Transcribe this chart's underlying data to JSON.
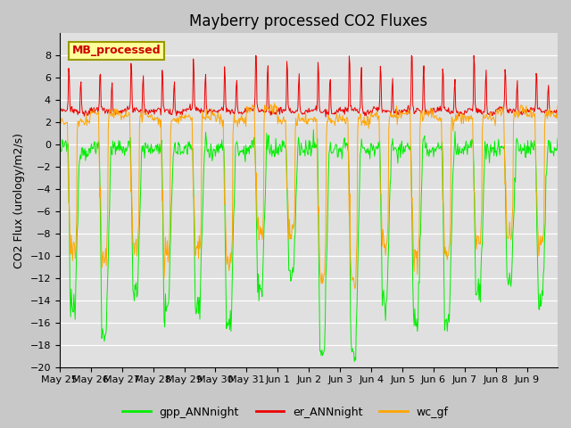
{
  "title": "Mayberry processed CO2 Fluxes",
  "ylabel": "CO2 Flux (urology/m2/s)",
  "ylim": [
    -20,
    10
  ],
  "yticks": [
    -20,
    -18,
    -16,
    -14,
    -12,
    -10,
    -8,
    -6,
    -4,
    -2,
    0,
    2,
    4,
    6,
    8
  ],
  "legend_label": "MB_processed",
  "legend_label_color": "#cc0000",
  "legend_box_color": "#ffff99",
  "fig_bg_color": "#c8c8c8",
  "plot_bg_color": "#e0e0e0",
  "series": {
    "gpp": {
      "color": "#00ee00",
      "label": "gpp_ANNnight"
    },
    "er": {
      "color": "#ee0000",
      "label": "er_ANNnight"
    },
    "wc": {
      "color": "#ffa500",
      "label": "wc_gf"
    }
  },
  "n_days": 16,
  "points_per_day": 48,
  "gpp_night_base": -0.5,
  "gpp_day_depths": [
    -15,
    -16.7,
    -13,
    -15,
    -14.5,
    -16,
    -13,
    -12,
    -18.5,
    -18.7,
    -14,
    -16,
    -16,
    -13,
    -12,
    -14
  ],
  "wc_night_base": 2.5,
  "wc_day_depths": [
    -10,
    -10,
    -9,
    -10,
    -9.5,
    -10.5,
    -8,
    -8,
    -12,
    -12,
    -9,
    -10.5,
    -10,
    -8.5,
    -8,
    -9
  ],
  "er_base": [
    3.0,
    3.0,
    3.1,
    3.0,
    3.1,
    3.0,
    3.0,
    3.0,
    3.0,
    3.0,
    3.0,
    3.0,
    3.0,
    3.0,
    3.0,
    3.0
  ],
  "er_spike_h": [
    4.2,
    4.1,
    4.8,
    4.2,
    5.0,
    4.3,
    7.0,
    5.0,
    4.8,
    5.8,
    4.5,
    6.5,
    4.5,
    5.8,
    4.2,
    4.1
  ]
}
